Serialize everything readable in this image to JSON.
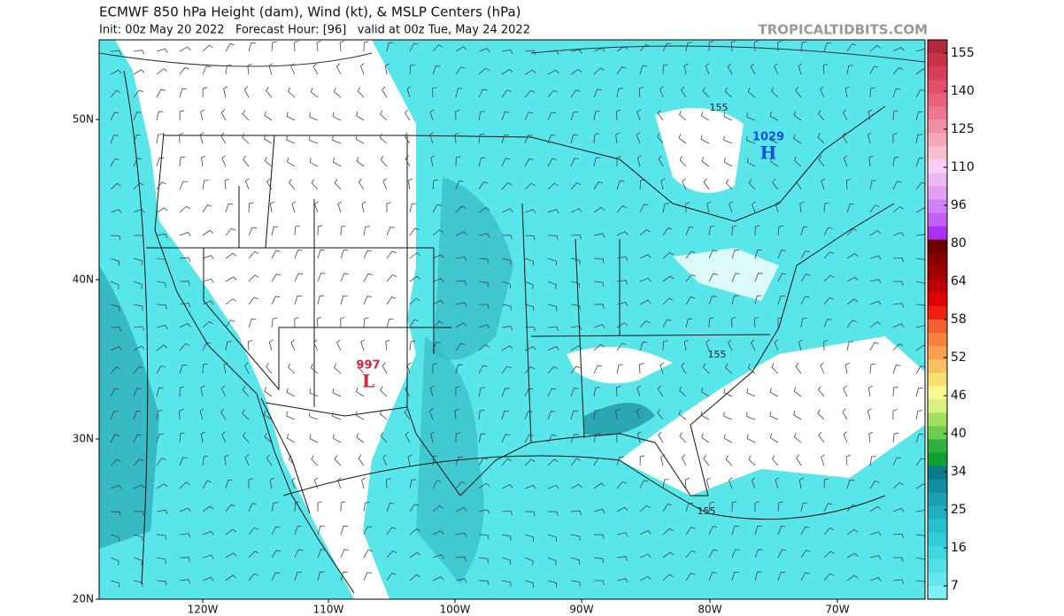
{
  "header": {
    "title": "ECMWF 850 hPa Height (dam), Wind (kt), & MSLP Centers (hPa)",
    "subtitle": "Init: 00z May 20 2022   Forecast Hour: [96]   valid at 00z Tue, May 24 2022",
    "site": "TROPICALTIDBITS.COM"
  },
  "map": {
    "lat_labels": [
      "50N",
      "40N",
      "30N",
      "20N"
    ],
    "lon_labels": [
      "120W",
      "110W",
      "100W",
      "90W",
      "80W",
      "70W"
    ],
    "centers": [
      {
        "value": 1029,
        "symbol": "H",
        "color": "#1a4fd8"
      },
      {
        "value": 997,
        "symbol": "L",
        "color": "#d8243a"
      }
    ],
    "contour_labels": [
      155,
      155,
      155
    ]
  },
  "colorbar": {
    "ticks": [
      155,
      140,
      125,
      110,
      96,
      80,
      64,
      58,
      52,
      46,
      40,
      34,
      25,
      16,
      7
    ],
    "colors": [
      "#b0283c",
      "#c8324a",
      "#d8405a",
      "#e04e6a",
      "#e8607c",
      "#ec7890",
      "#f090a6",
      "#f4a8ba",
      "#f8c0d0",
      "#f6d0f4",
      "#eeb8f4",
      "#e0a0f4",
      "#d080f4",
      "#c060f4",
      "#a830f0",
      "#6a0000",
      "#880000",
      "#a00000",
      "#c00000",
      "#e00000",
      "#f02010",
      "#f06030",
      "#f88040",
      "#f8a050",
      "#f8c060",
      "#f8e070",
      "#f8f890",
      "#d8f080",
      "#a0e060",
      "#70cc50",
      "#30b040",
      "#10a030",
      "#0a7a8c",
      "#128ea0",
      "#1aa0b0",
      "#20b0c0",
      "#28c0cc",
      "#30ccd8",
      "#40d8e0",
      "#50e0e8",
      "#64e8ee",
      "#7ef0f4"
    ]
  }
}
